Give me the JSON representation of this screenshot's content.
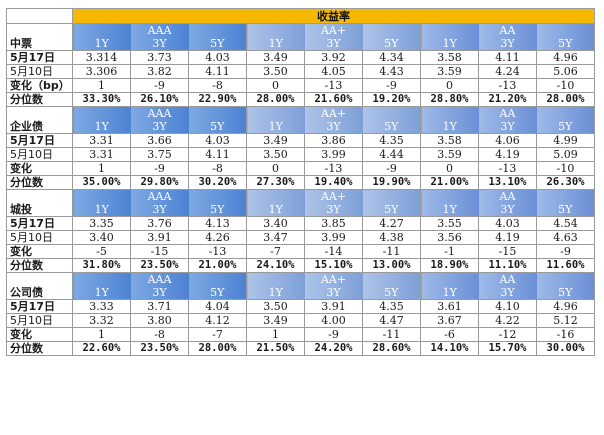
{
  "title": "收益率",
  "ratings": [
    "AAA",
    "AA+",
    "AA"
  ],
  "tenors": [
    "1Y",
    "3Y",
    "5Y"
  ],
  "sections": [
    {
      "name": "中票",
      "rows": [
        {
          "label": "5月17日",
          "bold": true,
          "values": [
            "3.314",
            "3.73",
            "4.03",
            "3.49",
            "3.92",
            "4.34",
            "3.58",
            "4.11",
            "4.96"
          ]
        },
        {
          "label": "5月10日",
          "bold": false,
          "values": [
            "3.306",
            "3.82",
            "4.11",
            "3.50",
            "4.05",
            "4.43",
            "3.59",
            "4.24",
            "5.06"
          ]
        },
        {
          "label": "变化（bp）",
          "bold": true,
          "values": [
            "1",
            "-9",
            "-8",
            "0",
            "-13",
            "-9",
            "0",
            "-13",
            "-10"
          ]
        },
        {
          "label": "分位数",
          "bold": true,
          "pct": true,
          "values": [
            "33.30%",
            "26.10%",
            "22.90%",
            "28.00%",
            "21.60%",
            "19.20%",
            "28.80%",
            "21.20%",
            "28.00%"
          ]
        }
      ]
    },
    {
      "name": "企业债",
      "rows": [
        {
          "label": "5月17日",
          "bold": true,
          "values": [
            "3.31",
            "3.66",
            "4.03",
            "3.49",
            "3.86",
            "4.35",
            "3.58",
            "4.06",
            "4.99"
          ]
        },
        {
          "label": "5月10日",
          "bold": false,
          "values": [
            "3.31",
            "3.75",
            "4.11",
            "3.50",
            "3.99",
            "4.44",
            "3.59",
            "4.19",
            "5.09"
          ]
        },
        {
          "label": "变化",
          "bold": true,
          "values": [
            "1",
            "-9",
            "-8",
            "0",
            "-13",
            "-9",
            "0",
            "-13",
            "-10"
          ]
        },
        {
          "label": "分位数",
          "bold": true,
          "pct": true,
          "values": [
            "35.00%",
            "29.80%",
            "30.20%",
            "27.30%",
            "19.40%",
            "19.90%",
            "21.00%",
            "13.10%",
            "26.30%"
          ]
        }
      ]
    },
    {
      "name": "城投",
      "rows": [
        {
          "label": "5月17日",
          "bold": true,
          "values": [
            "3.35",
            "3.76",
            "4.13",
            "3.40",
            "3.85",
            "4.27",
            "3.55",
            "4.03",
            "4.54"
          ]
        },
        {
          "label": "5月10日",
          "bold": false,
          "values": [
            "3.40",
            "3.91",
            "4.26",
            "3.47",
            "3.99",
            "4.38",
            "3.56",
            "4.19",
            "4.63"
          ]
        },
        {
          "label": "变化",
          "bold": true,
          "values": [
            "-5",
            "-15",
            "-13",
            "-7",
            "-14",
            "-11",
            "-1",
            "-15",
            "-9"
          ]
        },
        {
          "label": "分位数",
          "bold": true,
          "pct": true,
          "values": [
            "31.80%",
            "23.50%",
            "21.00%",
            "24.10%",
            "15.10%",
            "13.00%",
            "18.90%",
            "11.10%",
            "11.60%"
          ]
        }
      ]
    },
    {
      "name": "公司债",
      "rows": [
        {
          "label": "5月17日",
          "bold": true,
          "values": [
            "3.33",
            "3.71",
            "4.04",
            "3.50",
            "3.91",
            "4.35",
            "3.61",
            "4.10",
            "4.96"
          ]
        },
        {
          "label": "5月10日",
          "bold": false,
          "values": [
            "3.32",
            "3.80",
            "4.12",
            "3.49",
            "4.00",
            "4.47",
            "3.67",
            "4.22",
            "5.12"
          ]
        },
        {
          "label": "变化",
          "bold": true,
          "values": [
            "1",
            "-8",
            "-7",
            "1",
            "-9",
            "-11",
            "-6",
            "-12",
            "-16"
          ]
        },
        {
          "label": "分位数",
          "bold": true,
          "pct": true,
          "values": [
            "22.60%",
            "23.50%",
            "28.00%",
            "21.50%",
            "24.20%",
            "28.60%",
            "14.10%",
            "15.70%",
            "30.00%"
          ]
        }
      ]
    }
  ],
  "colors": {
    "title_bg": "#f6b800",
    "aaa_header": "#4d82d3",
    "aaplus_header": "#7d9fd8",
    "aa_header": "#6b8fd6",
    "grid": "#9a9a9a"
  }
}
